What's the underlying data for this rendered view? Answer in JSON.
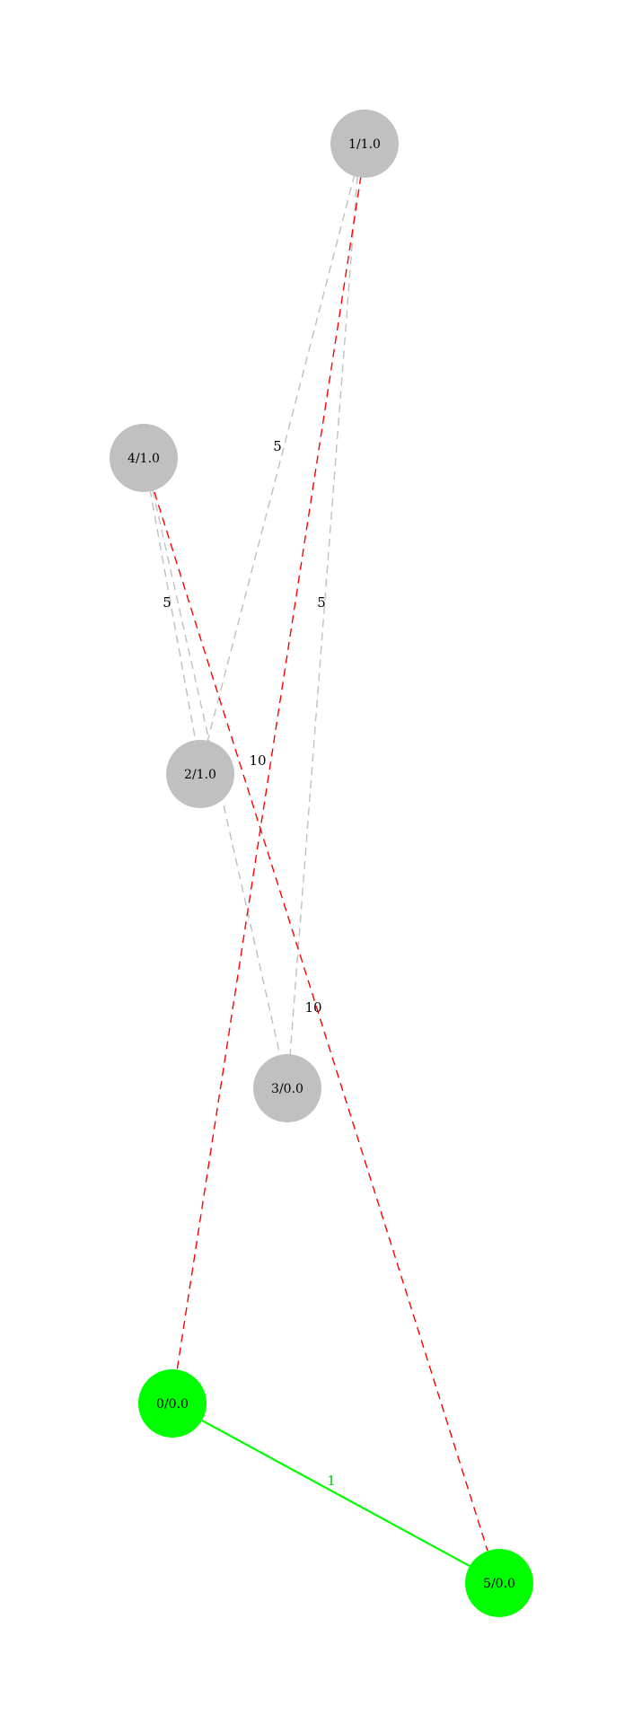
{
  "graph": {
    "colors": {
      "default_node": "#c0c0c0",
      "highlight_node": "#00ff00",
      "default_edge": "#c0c0c0",
      "cut_edge": "#ff0000",
      "tree_edge": "#00ff00"
    },
    "nodes": [
      {
        "id": "0",
        "label": "0/0.0",
        "color": "#00ff00"
      },
      {
        "id": "1",
        "label": "1/1.0",
        "color": "#c0c0c0"
      },
      {
        "id": "2",
        "label": "2/1.0",
        "color": "#c0c0c0"
      },
      {
        "id": "3",
        "label": "3/0.0",
        "color": "#c0c0c0"
      },
      {
        "id": "4",
        "label": "4/1.0",
        "color": "#c0c0c0"
      },
      {
        "id": "5",
        "label": "5/0.0",
        "color": "#00ff00"
      }
    ],
    "edges": [
      {
        "id": "1-2",
        "source": "1",
        "target": "2",
        "label": "5",
        "style": "dashed",
        "color": "#c0c0c0"
      },
      {
        "id": "1-3",
        "source": "1",
        "target": "3",
        "label": "5",
        "style": "dashed",
        "color": "#c0c0c0"
      },
      {
        "id": "4-2",
        "source": "4",
        "target": "2",
        "label": "5",
        "style": "dashed",
        "color": "#c0c0c0"
      },
      {
        "id": "4-3",
        "source": "4",
        "target": "3",
        "label": "5",
        "style": "dashed",
        "color": "#c0c0c0"
      },
      {
        "id": "1-0",
        "source": "1",
        "target": "0",
        "label": "10",
        "style": "dashed",
        "color": "#ff0000"
      },
      {
        "id": "4-5",
        "source": "4",
        "target": "5",
        "label": "10",
        "style": "dashed",
        "color": "#ff0000"
      },
      {
        "id": "0-5",
        "source": "0",
        "target": "5",
        "label": "1",
        "style": "solid",
        "color": "#00ff00"
      }
    ]
  }
}
